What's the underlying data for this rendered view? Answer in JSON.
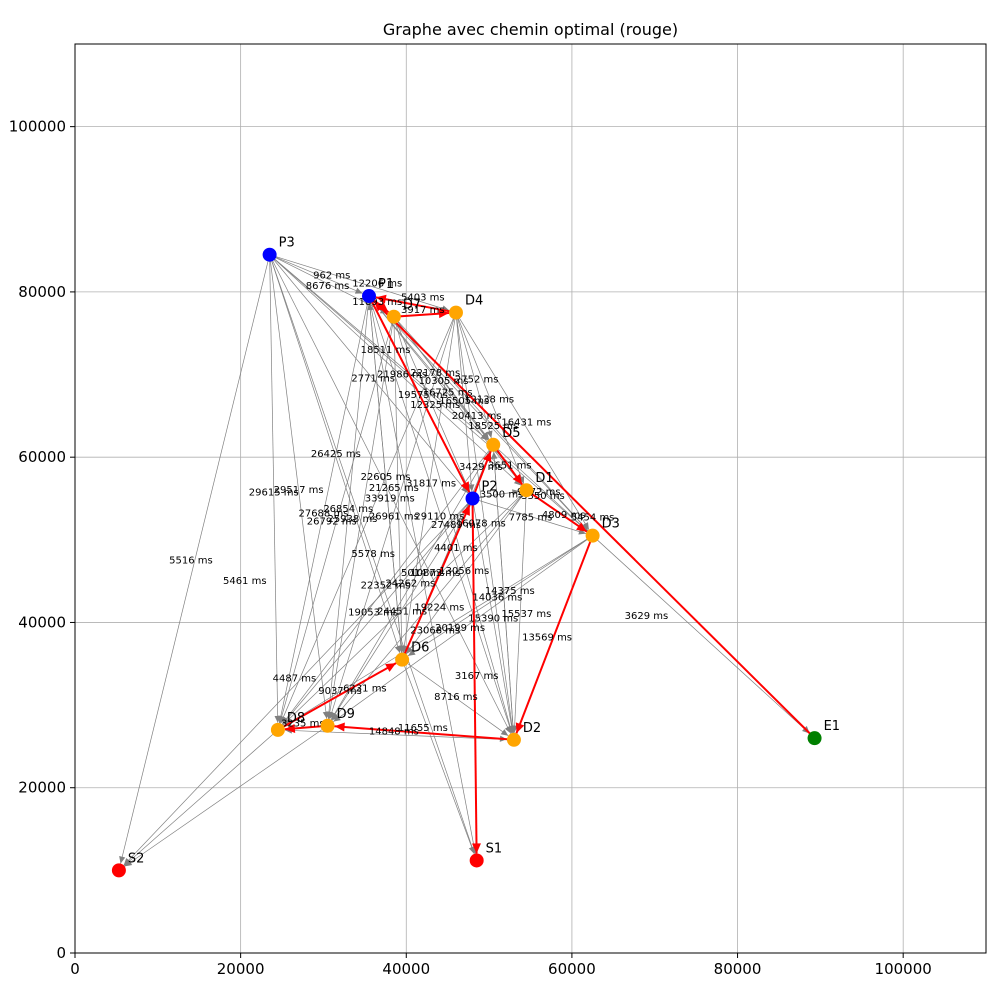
{
  "chart_data": {
    "type": "scatter",
    "title": "Graphe avec chemin optimal (rouge)",
    "xlim": [
      0,
      110000
    ],
    "ylim": [
      0,
      110000
    ],
    "grid": true,
    "xticks": [
      0,
      20000,
      40000,
      60000,
      80000,
      100000
    ],
    "yticks": [
      0,
      20000,
      40000,
      60000,
      80000,
      100000
    ],
    "xtick_labels": [
      "0",
      "20000",
      "40000",
      "60000",
      "80000",
      "100000"
    ],
    "ytick_labels": [
      "0",
      "20000",
      "40000",
      "60000",
      "80000",
      "100000"
    ],
    "colors": {
      "path": "#ff0000",
      "edge": "#808080",
      "grid": "#b0b0b0",
      "P": "#0000ff",
      "D": "#ffa500",
      "S": "#ff0000",
      "E": "#008000"
    },
    "nodes": [
      {
        "id": "P3",
        "label": "P3",
        "x": 23500,
        "y": 84500,
        "color": "#0000ff"
      },
      {
        "id": "P1",
        "label": "P1",
        "x": 35500,
        "y": 79500,
        "color": "#0000ff"
      },
      {
        "id": "P2",
        "label": "P2",
        "x": 48000,
        "y": 55000,
        "color": "#0000ff"
      },
      {
        "id": "D4",
        "label": "D4",
        "x": 46000,
        "y": 77500,
        "color": "#ffa500"
      },
      {
        "id": "D7",
        "label": "D7",
        "x": 38500,
        "y": 77000,
        "color": "#ffa500"
      },
      {
        "id": "D5",
        "label": "D5",
        "x": 50500,
        "y": 61500,
        "color": "#ffa500"
      },
      {
        "id": "D1",
        "label": "D1",
        "x": 54500,
        "y": 56000,
        "color": "#ffa500"
      },
      {
        "id": "D3",
        "label": "D3",
        "x": 62500,
        "y": 50500,
        "color": "#ffa500"
      },
      {
        "id": "D6",
        "label": "D6",
        "x": 39500,
        "y": 35500,
        "color": "#ffa500"
      },
      {
        "id": "D2",
        "label": "D2",
        "x": 53000,
        "y": 25800,
        "color": "#ffa500"
      },
      {
        "id": "D8",
        "label": "D8",
        "x": 24500,
        "y": 27000,
        "color": "#ffa500"
      },
      {
        "id": "D9",
        "label": "D9",
        "x": 30500,
        "y": 27500,
        "color": "#ffa500"
      },
      {
        "id": "S1",
        "label": "S1",
        "x": 48500,
        "y": 11200,
        "color": "#ff0000"
      },
      {
        "id": "S2",
        "label": "S2",
        "x": 5300,
        "y": 10000,
        "color": "#ff0000"
      },
      {
        "id": "E1",
        "label": "E1",
        "x": 89300,
        "y": 26000,
        "color": "#008000"
      }
    ],
    "edges": [
      [
        "P3",
        "P1"
      ],
      [
        "P3",
        "D7"
      ],
      [
        "P3",
        "D4"
      ],
      [
        "P3",
        "D5"
      ],
      [
        "P3",
        "P2"
      ],
      [
        "P3",
        "D1"
      ],
      [
        "P3",
        "D3"
      ],
      [
        "P3",
        "D6"
      ],
      [
        "P3",
        "D2"
      ],
      [
        "P3",
        "D8"
      ],
      [
        "P3",
        "D9"
      ],
      [
        "P3",
        "S2"
      ],
      [
        "P3",
        "S1"
      ],
      [
        "P1",
        "D5"
      ],
      [
        "P1",
        "P2"
      ],
      [
        "P1",
        "D1"
      ],
      [
        "P1",
        "D3"
      ],
      [
        "P1",
        "D6"
      ],
      [
        "P1",
        "D8"
      ],
      [
        "P1",
        "D9"
      ],
      [
        "P1",
        "D2"
      ],
      [
        "P1",
        "S1"
      ],
      [
        "P1",
        "E1"
      ],
      [
        "D7",
        "D5"
      ],
      [
        "D7",
        "P2"
      ],
      [
        "D7",
        "D1"
      ],
      [
        "D7",
        "D3"
      ],
      [
        "D7",
        "D6"
      ],
      [
        "D7",
        "D8"
      ],
      [
        "D7",
        "D9"
      ],
      [
        "D7",
        "D2"
      ],
      [
        "D4",
        "D5"
      ],
      [
        "D4",
        "P2"
      ],
      [
        "D4",
        "D1"
      ],
      [
        "D4",
        "D3"
      ],
      [
        "D4",
        "D6"
      ],
      [
        "D4",
        "D8"
      ],
      [
        "D4",
        "D9"
      ],
      [
        "D4",
        "D2"
      ],
      [
        "D5",
        "D8"
      ],
      [
        "D5",
        "D9"
      ],
      [
        "D5",
        "D6"
      ],
      [
        "D5",
        "D2"
      ],
      [
        "D5",
        "D3"
      ],
      [
        "P2",
        "D8"
      ],
      [
        "P2",
        "D9"
      ],
      [
        "P2",
        "D3"
      ],
      [
        "P2",
        "D1"
      ],
      [
        "P2",
        "D2"
      ],
      [
        "D1",
        "D8"
      ],
      [
        "D1",
        "D9"
      ],
      [
        "D1",
        "D6"
      ],
      [
        "D1",
        "D2"
      ],
      [
        "D1",
        "D3"
      ],
      [
        "D3",
        "D8"
      ],
      [
        "D3",
        "D9"
      ],
      [
        "D3",
        "D6"
      ],
      [
        "D3",
        "E1"
      ],
      [
        "D6",
        "D2"
      ],
      [
        "D6",
        "D8"
      ],
      [
        "D6",
        "S1"
      ],
      [
        "D6",
        "P1"
      ],
      [
        "D2",
        "D8"
      ],
      [
        "D9",
        "D2"
      ],
      [
        "D8",
        "S2"
      ],
      [
        "D9",
        "S2"
      ],
      [
        "P2",
        "S2"
      ],
      [
        "D2",
        "D5"
      ]
    ],
    "path": [
      [
        "E1",
        "P1"
      ],
      [
        "P1",
        "D7"
      ],
      [
        "D7",
        "D4"
      ],
      [
        "D4",
        "P1"
      ],
      [
        "P1",
        "P2"
      ],
      [
        "P2",
        "D5"
      ],
      [
        "D5",
        "D1"
      ],
      [
        "D1",
        "D3"
      ],
      [
        "D3",
        "D2"
      ],
      [
        "D2",
        "D9"
      ],
      [
        "D9",
        "D8"
      ],
      [
        "D8",
        "D6"
      ],
      [
        "D6",
        "P2"
      ],
      [
        "P2",
        "S1"
      ]
    ],
    "edge_labels": [
      {
        "text": "962 ms",
        "x": 31000,
        "y": 82000
      },
      {
        "text": "12206 ms",
        "x": 36500,
        "y": 81000
      },
      {
        "text": "8676 ms",
        "x": 30500,
        "y": 80700
      },
      {
        "text": "5403 ms",
        "x": 42000,
        "y": 79300
      },
      {
        "text": "11893 ms",
        "x": 36500,
        "y": 78800
      },
      {
        "text": "3917 ms",
        "x": 42000,
        "y": 77800
      },
      {
        "text": "18511 ms",
        "x": 37500,
        "y": 73000
      },
      {
        "text": "21986 ms",
        "x": 39500,
        "y": 70000
      },
      {
        "text": "22178 ms",
        "x": 43500,
        "y": 70200
      },
      {
        "text": "2771 ms",
        "x": 36000,
        "y": 69500
      },
      {
        "text": "10305 ms",
        "x": 44500,
        "y": 69200
      },
      {
        "text": "2752 ms",
        "x": 48500,
        "y": 69400
      },
      {
        "text": "16725 ms",
        "x": 45000,
        "y": 67800
      },
      {
        "text": "19575 ms",
        "x": 42000,
        "y": 67500
      },
      {
        "text": "16505 ms",
        "x": 47000,
        "y": 66800
      },
      {
        "text": "12138 ms",
        "x": 50000,
        "y": 67000
      },
      {
        "text": "12325 ms",
        "x": 43500,
        "y": 66300
      },
      {
        "text": "20413 ms",
        "x": 48500,
        "y": 65000
      },
      {
        "text": "16431 ms",
        "x": 54500,
        "y": 64200
      },
      {
        "text": "18525 ms",
        "x": 50500,
        "y": 63800
      },
      {
        "text": "26425 ms",
        "x": 31500,
        "y": 60400
      },
      {
        "text": "3429 ms",
        "x": 49000,
        "y": 58800
      },
      {
        "text": "3651 ms",
        "x": 52500,
        "y": 59000
      },
      {
        "text": "22605 ms",
        "x": 37500,
        "y": 57600
      },
      {
        "text": "31817 ms",
        "x": 43000,
        "y": 56800
      },
      {
        "text": "21265 ms",
        "x": 38500,
        "y": 56300
      },
      {
        "text": "29517 ms",
        "x": 27000,
        "y": 56000
      },
      {
        "text": "29615 ms",
        "x": 24000,
        "y": 55700
      },
      {
        "text": "3500 ms",
        "x": 51500,
        "y": 55500
      },
      {
        "text": "9272 ms",
        "x": 56000,
        "y": 55800
      },
      {
        "text": "3350 ms",
        "x": 56500,
        "y": 55300
      },
      {
        "text": "33919 ms",
        "x": 38000,
        "y": 55000
      },
      {
        "text": "26854 ms",
        "x": 33000,
        "y": 53700
      },
      {
        "text": "27688 ms",
        "x": 30000,
        "y": 53200
      },
      {
        "text": "4809 ms",
        "x": 59000,
        "y": 53000
      },
      {
        "text": "5454 ms",
        "x": 62500,
        "y": 52700
      },
      {
        "text": "7785 ms",
        "x": 55000,
        "y": 52700
      },
      {
        "text": "25938 ms",
        "x": 33500,
        "y": 52500
      },
      {
        "text": "26961 ms",
        "x": 38500,
        "y": 52800
      },
      {
        "text": "29110 ms",
        "x": 44000,
        "y": 52800
      },
      {
        "text": "26792 ms",
        "x": 31000,
        "y": 52200
      },
      {
        "text": "27489 ms",
        "x": 46000,
        "y": 51800
      },
      {
        "text": "16078 ms",
        "x": 49000,
        "y": 52000
      },
      {
        "text": "4401 ms",
        "x": 46000,
        "y": 49000
      },
      {
        "text": "5578 ms",
        "x": 36000,
        "y": 48300
      },
      {
        "text": "5516 ms",
        "x": 14000,
        "y": 47500
      },
      {
        "text": "5014 ms",
        "x": 42000,
        "y": 46000
      },
      {
        "text": "10873 ms",
        "x": 43500,
        "y": 46000
      },
      {
        "text": "13056 ms",
        "x": 47000,
        "y": 46200
      },
      {
        "text": "5461 ms",
        "x": 20500,
        "y": 45000
      },
      {
        "text": "22352 ms",
        "x": 37500,
        "y": 44500
      },
      {
        "text": "24262 ms",
        "x": 40500,
        "y": 44700
      },
      {
        "text": "14375 ms",
        "x": 52500,
        "y": 43800
      },
      {
        "text": "14036 ms",
        "x": 51000,
        "y": 43000
      },
      {
        "text": "19224 ms",
        "x": 44000,
        "y": 41800
      },
      {
        "text": "19053 ms",
        "x": 36000,
        "y": 41200
      },
      {
        "text": "24451 ms",
        "x": 39500,
        "y": 41300
      },
      {
        "text": "15537 ms",
        "x": 54500,
        "y": 41000
      },
      {
        "text": "15390 ms",
        "x": 50500,
        "y": 40500
      },
      {
        "text": "3629 ms",
        "x": 69000,
        "y": 40800
      },
      {
        "text": "20199 ms",
        "x": 46500,
        "y": 39300
      },
      {
        "text": "23068 ms",
        "x": 43500,
        "y": 39000
      },
      {
        "text": "13569 ms",
        "x": 57000,
        "y": 38200
      },
      {
        "text": "3167 ms",
        "x": 48500,
        "y": 33500
      },
      {
        "text": "4487 ms",
        "x": 26500,
        "y": 33200
      },
      {
        "text": "6231 ms",
        "x": 35000,
        "y": 32000
      },
      {
        "text": "9037 ms",
        "x": 32000,
        "y": 31700
      },
      {
        "text": "8716 ms",
        "x": 46000,
        "y": 31000
      },
      {
        "text": "3235 ms",
        "x": 27500,
        "y": 27800
      },
      {
        "text": "11655 ms",
        "x": 42000,
        "y": 27200
      },
      {
        "text": "14848 ms",
        "x": 38500,
        "y": 26800
      }
    ]
  }
}
